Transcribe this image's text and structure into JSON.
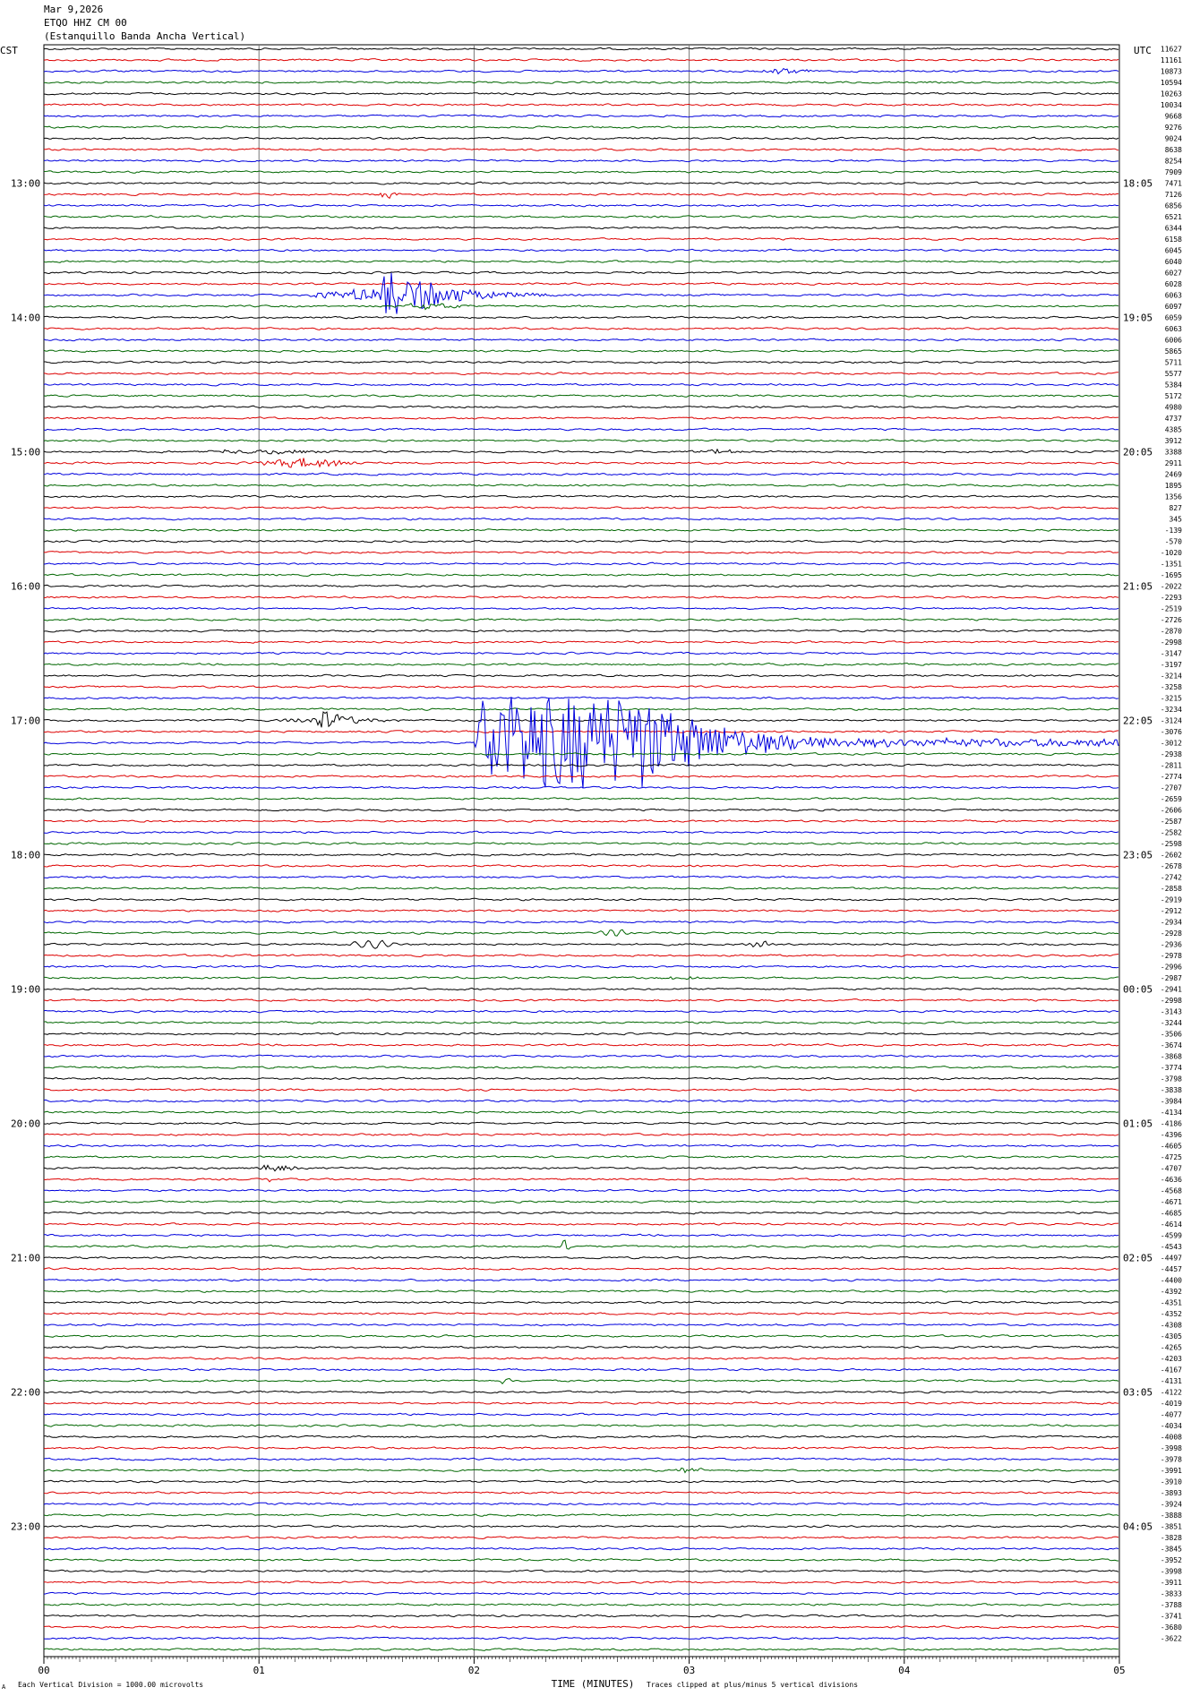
{
  "header": {
    "date": "Mar 9,2026",
    "station": "ETQO HHZ CM 00",
    "site": "(Estanquillo Banda Ancha Vertical)"
  },
  "left_zone": "CST",
  "right_zone": "UTC",
  "footer": {
    "xlabel": "TIME (MINUTES)",
    "scale_note": "Each Vertical Division = 1000.00 microvolts",
    "clip_note": "Traces clipped at plus/minus 5 vertical divisions",
    "mark": "A"
  },
  "chart_data": {
    "type": "line",
    "title": "ETQO HHZ CM 00",
    "xlabel": "TIME (MINUTES)",
    "ylabel": "",
    "xlim": [
      0,
      5
    ],
    "x_ticks": [
      "00",
      "01",
      "02",
      "03",
      "04",
      "05"
    ],
    "trace_count": 144,
    "trace_colors": [
      "#000000",
      "#dd0000",
      "#0000dd",
      "#006600"
    ],
    "left_hour_labels": [
      "13:00",
      "14:00",
      "15:00",
      "16:00",
      "17:00",
      "18:00",
      "19:00",
      "20:00",
      "21:00",
      "22:00",
      "23:00"
    ],
    "right_hour_labels": [
      "18:05",
      "19:05",
      "20:05",
      "21:05",
      "22:05",
      "23:05",
      "00:05",
      "01:05",
      "02:05",
      "03:05",
      "04:05"
    ],
    "first_hour_trace": 12,
    "right_values": [
      "11627",
      "11161",
      "10873",
      "10594",
      "10263",
      "10034",
      "9668",
      "9276",
      "9024",
      "8638",
      "8254",
      "7909",
      "7471",
      "7126",
      "6856",
      "6521",
      "6344",
      "6158",
      "6045",
      "6040",
      "6027",
      "6028",
      "6063",
      "6097",
      "6059",
      "6063",
      "6006",
      "5865",
      "5711",
      "5577",
      "5384",
      "5172",
      "4980",
      "4737",
      "4385",
      "3912",
      "3388",
      "2911",
      "2469",
      "1895",
      "1356",
      "827",
      "345",
      "-139",
      "-570",
      "-1020",
      "-1351",
      "-1695",
      "-2022",
      "-2293",
      "-2519",
      "-2726",
      "-2870",
      "-2998",
      "-3147",
      "-3197",
      "-3214",
      "-3258",
      "-3215",
      "-3234",
      "-3124",
      "-3076",
      "-3012",
      "-2938",
      "-2811",
      "-2774",
      "-2707",
      "-2659",
      "-2606",
      "-2587",
      "-2582",
      "-2598",
      "-2602",
      "-2678",
      "-2742",
      "-2858",
      "-2919",
      "-2912",
      "-2934",
      "-2928",
      "-2936",
      "-2978",
      "-2996",
      "-2987",
      "-2941",
      "-2998",
      "-3143",
      "-3244",
      "-3506",
      "-3674",
      "-3868",
      "-3774",
      "-3798",
      "-3838",
      "-3984",
      "-4134",
      "-4186",
      "-4396",
      "-4605",
      "-4725",
      "-4707",
      "-4636",
      "-4568",
      "-4671",
      "-4685",
      "-4614",
      "-4599",
      "-4543",
      "-4497",
      "-4457",
      "-4400",
      "-4392",
      "-4351",
      "-4352",
      "-4308",
      "-4305",
      "-4265",
      "-4203",
      "-4167",
      "-4131",
      "-4122",
      "-4019",
      "-4077",
      "-4034",
      "-4008",
      "-3998",
      "-3978",
      "-3991",
      "-3910",
      "-3893",
      "-3924",
      "-3888",
      "-3851",
      "-3828",
      "-3845",
      "-3952",
      "-3998",
      "-3911",
      "-3833",
      "-3788",
      "-3741",
      "-3680",
      "-3622"
    ],
    "events": [
      {
        "trace": 2,
        "start": 3.3,
        "end": 3.6,
        "amp": 3,
        "kind": "burst"
      },
      {
        "trace": 13,
        "start": 1.55,
        "end": 1.65,
        "amp": 5,
        "kind": "burst"
      },
      {
        "trace": 22,
        "start": 1.2,
        "end": 2.4,
        "amp": 26,
        "kind": "quake"
      },
      {
        "trace": 23,
        "start": 1.6,
        "end": 2.0,
        "amp": 3,
        "kind": "burst"
      },
      {
        "trace": 36,
        "start": 0.65,
        "end": 1.4,
        "amp": 2,
        "kind": "burst"
      },
      {
        "trace": 36,
        "start": 2.95,
        "end": 3.3,
        "amp": 2,
        "kind": "burst"
      },
      {
        "trace": 37,
        "start": 0.95,
        "end": 1.5,
        "amp": 5,
        "kind": "burst"
      },
      {
        "trace": 60,
        "start": 1.08,
        "end": 1.7,
        "amp": 12,
        "kind": "quake"
      },
      {
        "trace": 62,
        "start": 2.0,
        "end": 5.0,
        "amp": 52,
        "kind": "clipped",
        "clip_end": 2.8
      },
      {
        "trace": 79,
        "start": 2.55,
        "end": 2.75,
        "amp": 4,
        "kind": "wave"
      },
      {
        "trace": 80,
        "start": 1.4,
        "end": 1.65,
        "amp": 5,
        "kind": "wave"
      },
      {
        "trace": 80,
        "start": 3.25,
        "end": 3.4,
        "amp": 3,
        "kind": "wave"
      },
      {
        "trace": 83,
        "start": 2.85,
        "end": 3.1,
        "amp": 2,
        "kind": "burst"
      },
      {
        "trace": 100,
        "start": 0.95,
        "end": 1.2,
        "amp": 3,
        "kind": "burst"
      },
      {
        "trace": 101,
        "start": 1.03,
        "end": 1.08,
        "amp": 5,
        "kind": "burst"
      },
      {
        "trace": 107,
        "start": 2.38,
        "end": 2.45,
        "amp": 8,
        "kind": "burst"
      },
      {
        "trace": 119,
        "start": 2.1,
        "end": 2.2,
        "amp": 4,
        "kind": "burst"
      },
      {
        "trace": 127,
        "start": 2.9,
        "end": 3.1,
        "amp": 3,
        "kind": "burst"
      }
    ]
  }
}
